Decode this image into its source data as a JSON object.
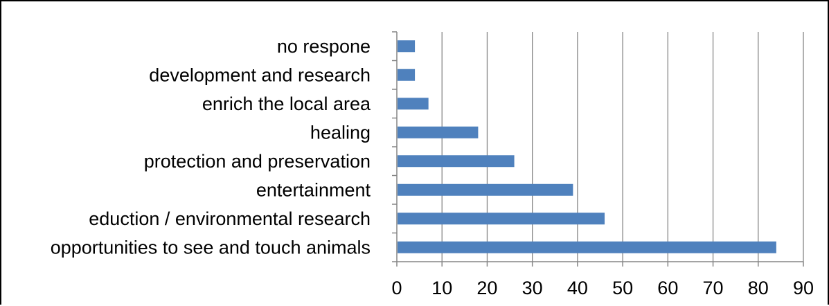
{
  "chart_data": {
    "type": "bar",
    "orientation": "horizontal",
    "categories": [
      "opportunities to see and touch animals",
      "eduction / environmental research",
      "entertainment",
      "protection and preservation",
      "healing",
      "enrich the local area",
      "development and research",
      "no respone"
    ],
    "values": [
      84,
      46,
      39,
      26,
      18,
      7,
      4,
      4
    ],
    "xlim": [
      0,
      90
    ],
    "xticks": [
      0,
      10,
      20,
      30,
      40,
      50,
      60,
      70,
      80,
      90
    ],
    "grid": true,
    "bar_color": "#4F81BD",
    "grid_color": "#868686",
    "axis_color": "#868686"
  }
}
